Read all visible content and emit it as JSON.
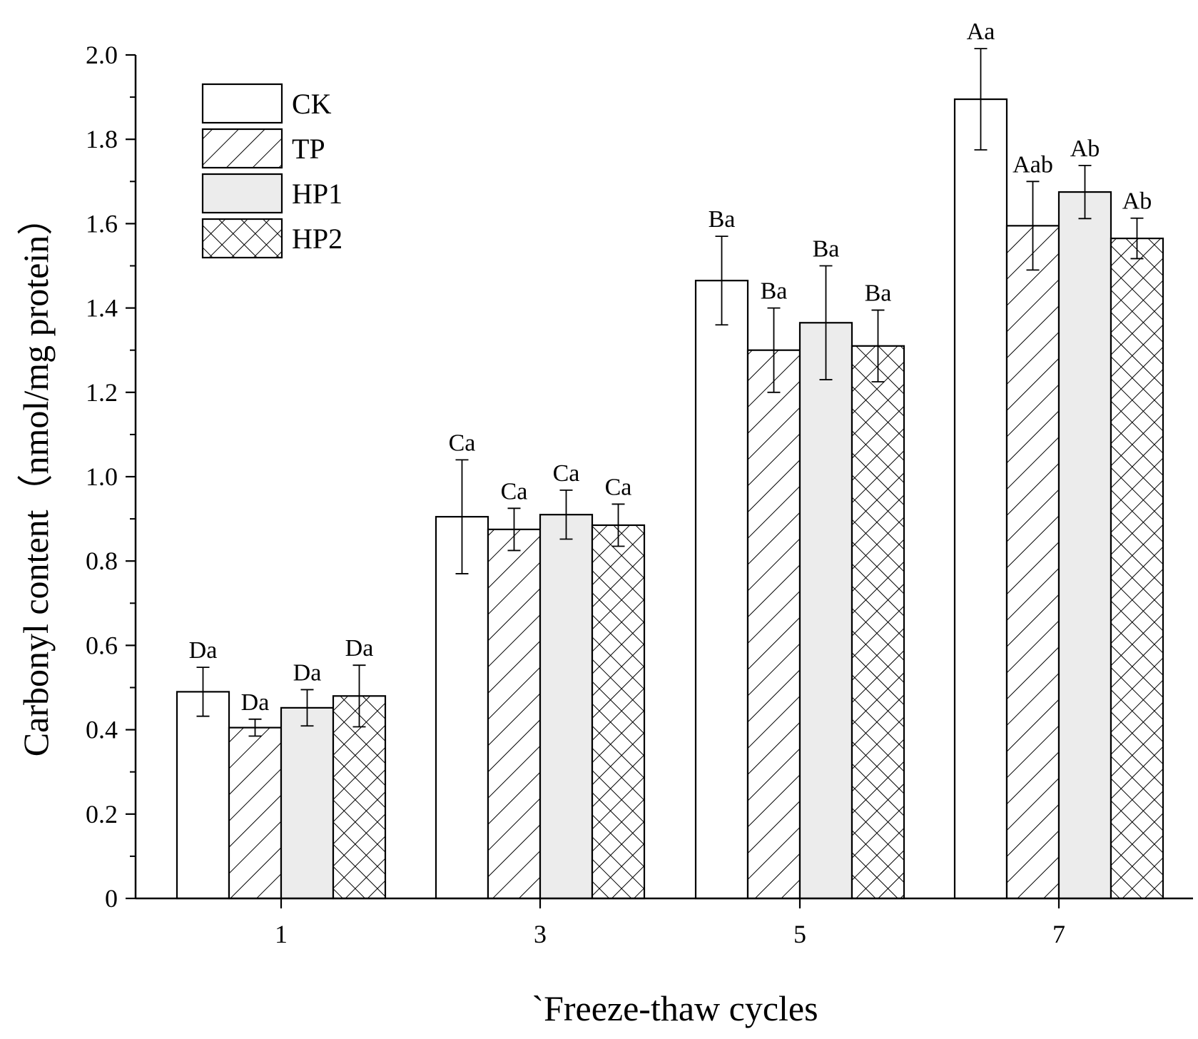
{
  "chart_data": {
    "type": "bar",
    "title": "",
    "xlabel": "`Freeze-thaw cycles",
    "ylabel": "Carbonyl content（nmol/mg protein）",
    "categories": [
      "1",
      "3",
      "5",
      "7"
    ],
    "ylim": [
      0,
      2.0
    ],
    "yticks": [
      "0",
      "0.2",
      "0.4",
      "0.6",
      "0.8",
      "1.0",
      "1.2",
      "1.4",
      "1.6",
      "1.8",
      "2.0"
    ],
    "legend_position": "top-left",
    "grid": false,
    "series": [
      {
        "name": "CK",
        "fill": "none",
        "values": [
          0.49,
          0.905,
          1.465,
          1.895
        ],
        "errors": [
          0.058,
          0.135,
          0.105,
          0.12
        ],
        "labels": [
          "Da",
          "Ca",
          "Ba",
          "Aa"
        ]
      },
      {
        "name": "TP",
        "fill": "diagonal-hatch",
        "values": [
          0.405,
          0.875,
          1.3,
          1.595
        ],
        "errors": [
          0.02,
          0.05,
          0.1,
          0.105
        ],
        "labels": [
          "Da",
          "Ca",
          "Ba",
          "Aab"
        ]
      },
      {
        "name": "HP1",
        "fill": "light-gray",
        "values": [
          0.452,
          0.91,
          1.365,
          1.675
        ],
        "errors": [
          0.043,
          0.058,
          0.135,
          0.063
        ],
        "labels": [
          "Da",
          "Ca",
          "Ba",
          "Ab"
        ]
      },
      {
        "name": "HP2",
        "fill": "cross-hatch",
        "values": [
          0.48,
          0.885,
          1.31,
          1.565
        ],
        "errors": [
          0.073,
          0.05,
          0.085,
          0.048
        ],
        "labels": [
          "Da",
          "Ca",
          "Ba",
          "Ab"
        ]
      }
    ],
    "colors": {
      "stroke": "#000000",
      "background": "#ffffff",
      "hp1_fill": "#ececec"
    }
  }
}
